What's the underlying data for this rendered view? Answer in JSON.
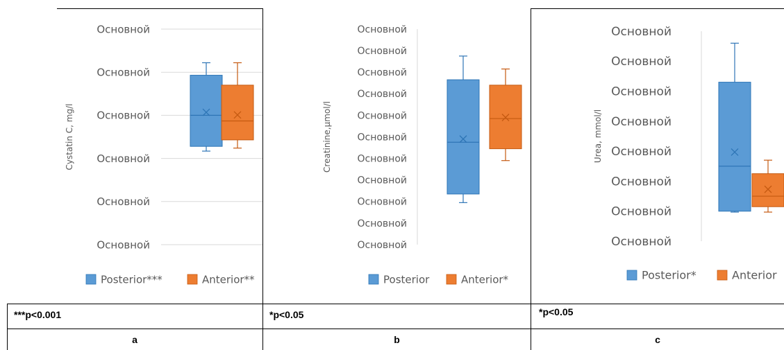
{
  "colors": {
    "posterior": "#5b9bd5",
    "posterior_edge": "#2e75b6",
    "anterior": "#ed7d31",
    "anterior_edge": "#c55a11",
    "grid": "#d9d9d9"
  },
  "notes": {
    "a": "***p<0.001",
    "b": "*p<0.05",
    "c": "*p<0.05"
  },
  "panels": {
    "a": "a",
    "b": "b",
    "c": "c"
  },
  "chart_data": [
    {
      "type": "box",
      "ylabel": "Cystatin C, mg/l",
      "ylim": [
        0,
        5
      ],
      "tick_labels": [
        "Основной",
        "Основной",
        "Основной",
        "Основной",
        "Основной",
        "Основной"
      ],
      "grid": true,
      "legend_position": "bottom",
      "series": [
        {
          "name": "Posterior***",
          "color": "posterior",
          "min": 2.17,
          "q1": 2.28,
          "median": 3.0,
          "q3": 3.93,
          "max": 4.22,
          "mean": 3.07
        },
        {
          "name": "Anterior**",
          "color": "anterior",
          "min": 2.24,
          "q1": 2.43,
          "median": 2.87,
          "q3": 3.7,
          "max": 4.22,
          "mean": 3.01
        }
      ]
    },
    {
      "type": "box",
      "ylabel": "Creatinine,µmol/l",
      "ylim": [
        0,
        10
      ],
      "tick_labels": [
        "Основной",
        "Основной",
        "Основной",
        "Основной",
        "Основной",
        "Основной",
        "Основной",
        "Основной",
        "Основной",
        "Основной",
        "Основной"
      ],
      "grid": false,
      "legend_position": "bottom",
      "series": [
        {
          "name": "Posterior",
          "color": "posterior",
          "min": 1.95,
          "q1": 2.35,
          "median": 4.75,
          "q3": 7.65,
          "max": 8.75,
          "mean": 4.9
        },
        {
          "name": "Anterior*",
          "color": "anterior",
          "min": 3.9,
          "q1": 4.45,
          "median": 5.85,
          "q3": 7.4,
          "max": 8.15,
          "mean": 5.9
        }
      ]
    },
    {
      "type": "box",
      "ylabel": "Urea, mmol/l",
      "ylim": [
        0,
        7
      ],
      "tick_labels": [
        "Основной",
        "Основной",
        "Основной",
        "Основной",
        "Основной",
        "Основной",
        "Основной",
        "Основной"
      ],
      "grid": false,
      "legend_position": "bottom",
      "series": [
        {
          "name": "Posterior*",
          "color": "posterior",
          "min": 0.97,
          "q1": 1.0,
          "median": 2.5,
          "q3": 5.3,
          "max": 6.6,
          "mean": 2.97
        },
        {
          "name": "Anterior",
          "color": "anterior",
          "min": 0.97,
          "q1": 1.15,
          "median": 1.5,
          "q3": 2.25,
          "max": 2.7,
          "mean": 1.73
        }
      ]
    }
  ]
}
